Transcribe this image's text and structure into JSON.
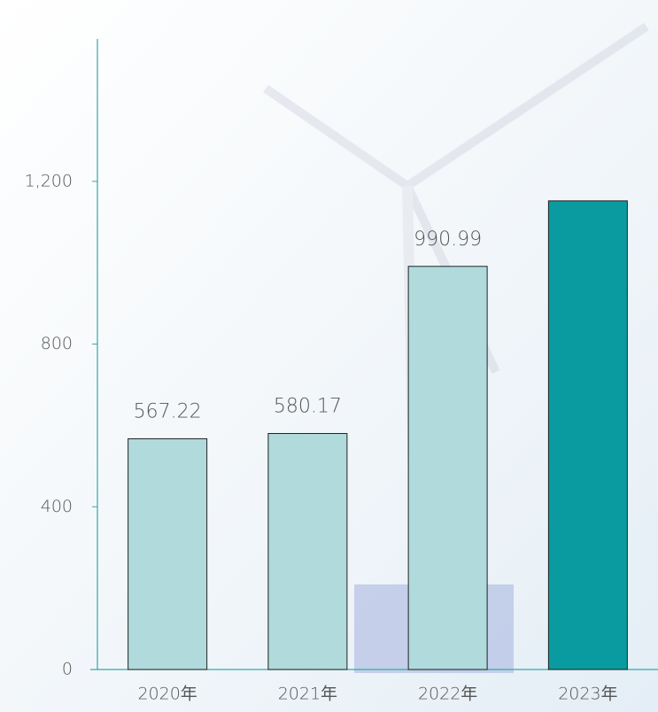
{
  "chart_data": {
    "type": "bar",
    "categories": [
      "2020年",
      "2021年",
      "2022年",
      "2023年"
    ],
    "values": [
      567.22,
      580.17,
      990.99,
      1152
    ],
    "value_labels": [
      "567.22",
      "580.17",
      "990.99",
      null
    ],
    "colors": [
      "#b0dadc",
      "#b0dadc",
      "#b0dadc",
      "#0a9ba0"
    ],
    "ylim": [
      0,
      1550
    ],
    "yticks": [
      0,
      400,
      800,
      {
        "value": 1200,
        "label": "1,200"
      }
    ],
    "grid": false
  }
}
